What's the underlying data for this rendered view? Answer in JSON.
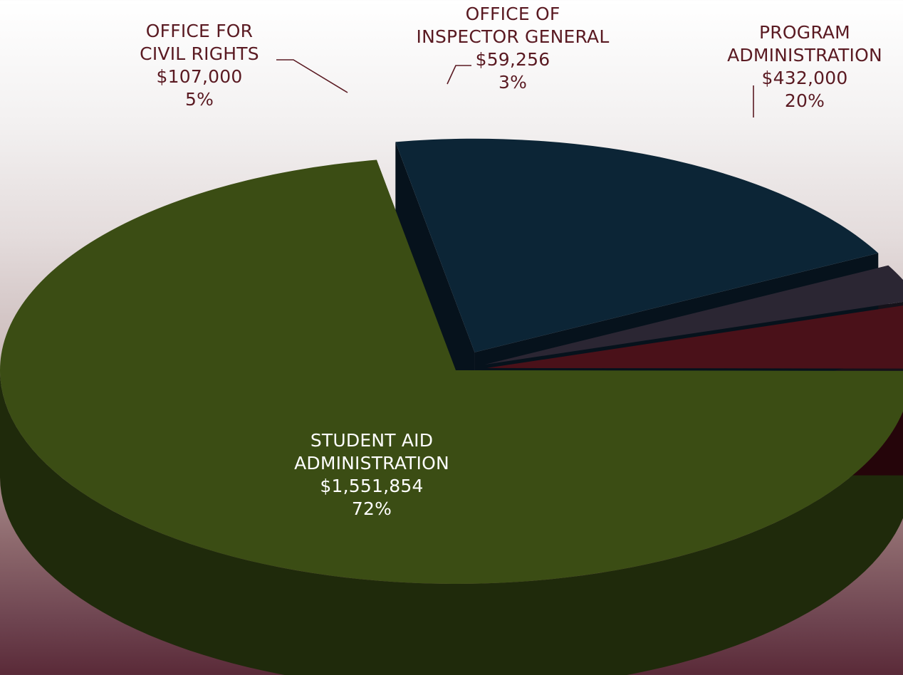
{
  "chart_data": {
    "type": "pie",
    "variant": "3d-exploded",
    "slices": [
      {
        "label": [
          "STUDENT AID",
          "ADMINISTRATION"
        ],
        "value": 1551854,
        "value_label": "$1,551,854",
        "percent_label": "72%",
        "color": "#3b4d14",
        "side_color": "#1f2a0b"
      },
      {
        "label": [
          "OFFICE FOR",
          "CIVIL RIGHTS"
        ],
        "value": 107000,
        "value_label": "$107,000",
        "percent_label": "5%",
        "color": "#4a1119",
        "side_color": "#25050a"
      },
      {
        "label": [
          "OFFICE OF",
          "INSPECTOR GENERAL"
        ],
        "value": 59256,
        "value_label": "$59,256",
        "percent_label": "3%",
        "color": "#2b2633",
        "side_color": "#15121a"
      },
      {
        "label": [
          "PROGRAM",
          "ADMINISTRATION"
        ],
        "value": 432000,
        "value_label": "$432,000",
        "percent_label": "20%",
        "color": "#0c2536",
        "side_color": "#06121c"
      }
    ],
    "label_color_outside": "#5a1a22",
    "label_color_inside": "#ffffff",
    "leader_line_color": "#5a1a22"
  }
}
